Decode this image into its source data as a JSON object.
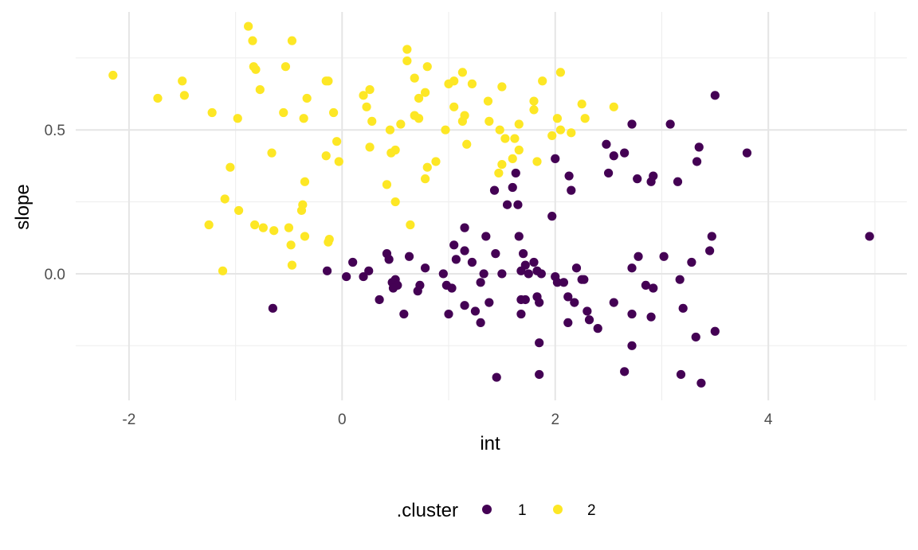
{
  "chart_data": {
    "type": "scatter",
    "title": "",
    "xlabel": "int",
    "ylabel": "slope",
    "xlim": [
      -2.5,
      5.3
    ],
    "ylim": [
      -0.44,
      0.91
    ],
    "x_ticks": [
      -2,
      0,
      2,
      4
    ],
    "x_tick_labels": [
      "-2",
      "0",
      "2",
      "4"
    ],
    "y_ticks": [
      0.0,
      0.5
    ],
    "y_tick_labels": [
      "0.0",
      "0.5"
    ],
    "grid": true,
    "legend": {
      "title": ".cluster",
      "placement": "bottom",
      "entries": [
        "1",
        "2"
      ]
    },
    "colors": {
      "1": "#440154",
      "2": "#fde725"
    },
    "series": [
      {
        "name": "1",
        "points": [
          [
            3.5,
            0.62
          ],
          [
            4.95,
            0.13
          ],
          [
            3.8,
            0.42
          ],
          [
            3.35,
            0.44
          ],
          [
            3.33,
            0.39
          ],
          [
            3.08,
            0.52
          ],
          [
            2.72,
            0.52
          ],
          [
            2.55,
            0.41
          ],
          [
            2.65,
            0.42
          ],
          [
            2.48,
            0.45
          ],
          [
            2.5,
            0.35
          ],
          [
            2.77,
            0.33
          ],
          [
            2.9,
            0.32
          ],
          [
            2.92,
            0.34
          ],
          [
            3.15,
            0.32
          ],
          [
            2.13,
            0.34
          ],
          [
            2.15,
            0.29
          ],
          [
            2.0,
            0.4
          ],
          [
            1.43,
            0.29
          ],
          [
            1.6,
            0.3
          ],
          [
            1.55,
            0.24
          ],
          [
            1.65,
            0.24
          ],
          [
            1.63,
            0.35
          ],
          [
            1.97,
            0.2
          ],
          [
            1.15,
            0.16
          ],
          [
            1.05,
            0.1
          ],
          [
            1.15,
            0.08
          ],
          [
            1.35,
            0.13
          ],
          [
            1.66,
            0.13
          ],
          [
            1.07,
            0.05
          ],
          [
            1.22,
            0.04
          ],
          [
            1.44,
            0.07
          ],
          [
            1.7,
            0.07
          ],
          [
            1.8,
            0.04
          ],
          [
            1.72,
            0.03
          ],
          [
            1.68,
            0.01
          ],
          [
            1.75,
            0.0
          ],
          [
            1.83,
            0.01
          ],
          [
            1.87,
            0.0
          ],
          [
            1.33,
            0.0
          ],
          [
            1.3,
            -0.03
          ],
          [
            1.5,
            0.0
          ],
          [
            2.0,
            -0.01
          ],
          [
            2.02,
            -0.03
          ],
          [
            2.08,
            -0.03
          ],
          [
            2.2,
            0.02
          ],
          [
            2.27,
            -0.02
          ],
          [
            2.25,
            -0.02
          ],
          [
            2.12,
            -0.08
          ],
          [
            2.18,
            -0.1
          ],
          [
            2.3,
            -0.13
          ],
          [
            2.32,
            -0.16
          ],
          [
            2.4,
            -0.19
          ],
          [
            2.12,
            -0.17
          ],
          [
            2.55,
            -0.1
          ],
          [
            2.72,
            -0.14
          ],
          [
            2.72,
            -0.25
          ],
          [
            2.65,
            -0.34
          ],
          [
            2.72,
            0.02
          ],
          [
            2.78,
            0.06
          ],
          [
            2.85,
            -0.04
          ],
          [
            2.92,
            -0.05
          ],
          [
            2.9,
            -0.15
          ],
          [
            3.02,
            0.06
          ],
          [
            3.17,
            -0.02
          ],
          [
            3.2,
            -0.12
          ],
          [
            3.18,
            -0.35
          ],
          [
            3.28,
            0.04
          ],
          [
            3.32,
            -0.22
          ],
          [
            3.37,
            -0.38
          ],
          [
            3.45,
            0.08
          ],
          [
            3.47,
            0.13
          ],
          [
            3.5,
            -0.2
          ],
          [
            0.42,
            0.07
          ],
          [
            0.44,
            0.05
          ],
          [
            0.63,
            0.06
          ],
          [
            0.78,
            0.02
          ],
          [
            0.95,
            0.0
          ],
          [
            0.98,
            -0.04
          ],
          [
            1.03,
            -0.05
          ],
          [
            1.0,
            -0.14
          ],
          [
            1.15,
            -0.11
          ],
          [
            1.25,
            -0.13
          ],
          [
            1.3,
            -0.17
          ],
          [
            1.38,
            -0.1
          ],
          [
            1.45,
            -0.36
          ],
          [
            1.68,
            -0.09
          ],
          [
            1.72,
            -0.09
          ],
          [
            1.68,
            -0.14
          ],
          [
            1.83,
            -0.08
          ],
          [
            1.85,
            -0.1
          ],
          [
            1.85,
            -0.24
          ],
          [
            1.85,
            -0.35
          ],
          [
            0.5,
            -0.02
          ],
          [
            0.47,
            -0.03
          ],
          [
            0.52,
            -0.04
          ],
          [
            0.48,
            -0.05
          ],
          [
            0.73,
            -0.04
          ],
          [
            0.71,
            -0.06
          ],
          [
            0.58,
            -0.14
          ],
          [
            0.35,
            -0.09
          ],
          [
            0.2,
            -0.01
          ],
          [
            0.25,
            0.01
          ],
          [
            0.1,
            0.04
          ],
          [
            0.04,
            -0.01
          ],
          [
            -0.14,
            0.01
          ],
          [
            -0.65,
            -0.12
          ]
        ]
      },
      {
        "name": "2",
        "points": [
          [
            -2.15,
            0.69
          ],
          [
            -1.73,
            0.61
          ],
          [
            -1.5,
            0.67
          ],
          [
            -1.48,
            0.62
          ],
          [
            -1.22,
            0.56
          ],
          [
            -1.25,
            0.17
          ],
          [
            -1.12,
            0.01
          ],
          [
            -1.1,
            0.26
          ],
          [
            -1.05,
            0.37
          ],
          [
            -0.98,
            0.54
          ],
          [
            -0.97,
            0.22
          ],
          [
            -0.88,
            0.86
          ],
          [
            -0.84,
            0.81
          ],
          [
            -0.83,
            0.72
          ],
          [
            -0.81,
            0.71
          ],
          [
            -0.77,
            0.64
          ],
          [
            -0.82,
            0.17
          ],
          [
            -0.74,
            0.16
          ],
          [
            -0.66,
            0.42
          ],
          [
            -0.64,
            0.15
          ],
          [
            -0.55,
            0.56
          ],
          [
            -0.53,
            0.72
          ],
          [
            -0.47,
            0.81
          ],
          [
            -0.5,
            0.16
          ],
          [
            -0.48,
            0.1
          ],
          [
            -0.47,
            0.03
          ],
          [
            -0.36,
            0.54
          ],
          [
            -0.33,
            0.61
          ],
          [
            -0.35,
            0.32
          ],
          [
            -0.37,
            0.24
          ],
          [
            -0.38,
            0.22
          ],
          [
            -0.35,
            0.13
          ],
          [
            -0.13,
            0.67
          ],
          [
            -0.15,
            0.67
          ],
          [
            -0.08,
            0.56
          ],
          [
            -0.15,
            0.41
          ],
          [
            -0.05,
            0.46
          ],
          [
            -0.03,
            0.39
          ],
          [
            -0.13,
            0.11
          ],
          [
            -0.12,
            0.12
          ],
          [
            0.2,
            0.62
          ],
          [
            0.23,
            0.58
          ],
          [
            0.26,
            0.64
          ],
          [
            0.28,
            0.53
          ],
          [
            0.26,
            0.44
          ],
          [
            0.45,
            0.5
          ],
          [
            0.46,
            0.42
          ],
          [
            0.5,
            0.43
          ],
          [
            0.55,
            0.52
          ],
          [
            0.42,
            0.31
          ],
          [
            0.5,
            0.25
          ],
          [
            0.61,
            0.78
          ],
          [
            0.61,
            0.74
          ],
          [
            0.68,
            0.68
          ],
          [
            0.72,
            0.61
          ],
          [
            0.78,
            0.63
          ],
          [
            0.8,
            0.72
          ],
          [
            0.68,
            0.55
          ],
          [
            0.72,
            0.54
          ],
          [
            0.8,
            0.37
          ],
          [
            0.78,
            0.33
          ],
          [
            0.88,
            0.39
          ],
          [
            0.64,
            0.17
          ],
          [
            1.0,
            0.66
          ],
          [
            1.05,
            0.67
          ],
          [
            1.13,
            0.7
          ],
          [
            1.22,
            0.66
          ],
          [
            1.05,
            0.58
          ],
          [
            1.13,
            0.53
          ],
          [
            1.15,
            0.55
          ],
          [
            0.97,
            0.5
          ],
          [
            1.17,
            0.45
          ],
          [
            1.37,
            0.6
          ],
          [
            1.38,
            0.53
          ],
          [
            1.48,
            0.5
          ],
          [
            1.53,
            0.47
          ],
          [
            1.5,
            0.65
          ],
          [
            1.5,
            0.38
          ],
          [
            1.47,
            0.35
          ],
          [
            1.62,
            0.47
          ],
          [
            1.66,
            0.52
          ],
          [
            1.66,
            0.43
          ],
          [
            1.6,
            0.4
          ],
          [
            1.8,
            0.6
          ],
          [
            1.8,
            0.57
          ],
          [
            1.83,
            0.39
          ],
          [
            1.88,
            0.67
          ],
          [
            1.97,
            0.48
          ],
          [
            2.02,
            0.54
          ],
          [
            2.05,
            0.5
          ],
          [
            2.05,
            0.7
          ],
          [
            2.15,
            0.49
          ],
          [
            2.25,
            0.59
          ],
          [
            2.28,
            0.54
          ],
          [
            2.55,
            0.58
          ]
        ]
      }
    ]
  }
}
